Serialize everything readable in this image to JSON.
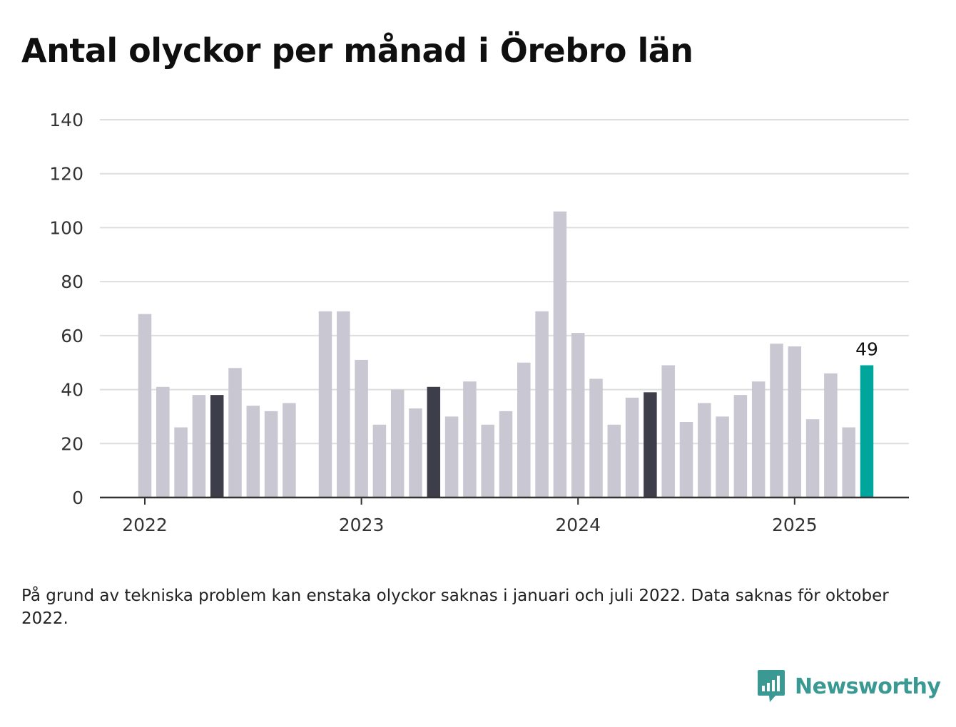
{
  "title": "Antal olyckor per månad i Örebro län",
  "footnote": "På grund av tekniska problem kan enstaka olyckor saknas i januari och juli 2022. Data saknas för oktober 2022.",
  "brand": {
    "name": "Newsworthy",
    "icon": "newsworthy-logo-icon"
  },
  "colors": {
    "bar": "#c8c7d2",
    "highlight": "#3e3e4a",
    "latest": "#00a59b",
    "grid": "#dedede",
    "axis": "#333333",
    "brand": "#3a9a93"
  },
  "chart_data": {
    "type": "bar",
    "title": "Antal olyckor per månad i Örebro län",
    "xlabel": "",
    "ylabel": "",
    "ylim": [
      0,
      140
    ],
    "yticks": [
      0,
      20,
      40,
      60,
      80,
      100,
      120,
      140
    ],
    "grid": true,
    "legend": "none",
    "x_tick_labels": [
      {
        "label": "2022",
        "at": "2022-01"
      },
      {
        "label": "2023",
        "at": "2023-01"
      },
      {
        "label": "2024",
        "at": "2024-01"
      },
      {
        "label": "2025",
        "at": "2025-01"
      }
    ],
    "months": [
      "2022-01",
      "2022-02",
      "2022-03",
      "2022-04",
      "2022-05",
      "2022-06",
      "2022-07",
      "2022-08",
      "2022-09",
      "2022-10",
      "2022-11",
      "2022-12",
      "2023-01",
      "2023-02",
      "2023-03",
      "2023-04",
      "2023-05",
      "2023-06",
      "2023-07",
      "2023-08",
      "2023-09",
      "2023-10",
      "2023-11",
      "2023-12",
      "2024-01",
      "2024-02",
      "2024-03",
      "2024-04",
      "2024-05",
      "2024-06",
      "2024-07",
      "2024-08",
      "2024-09",
      "2024-10",
      "2024-11",
      "2024-12",
      "2025-01",
      "2025-02",
      "2025-03",
      "2025-04",
      "2025-05"
    ],
    "values": [
      68,
      41,
      26,
      38,
      38,
      48,
      34,
      32,
      35,
      null,
      69,
      69,
      51,
      27,
      40,
      33,
      41,
      30,
      43,
      27,
      32,
      50,
      69,
      106,
      61,
      44,
      27,
      37,
      39,
      49,
      28,
      35,
      30,
      38,
      43,
      57,
      56,
      29,
      46,
      26,
      49
    ],
    "highlighted_months": [
      "2022-05",
      "2023-05",
      "2024-05"
    ],
    "latest_month": "2025-05",
    "data_labels": [
      {
        "month": "2025-05",
        "text": "49"
      }
    ]
  }
}
